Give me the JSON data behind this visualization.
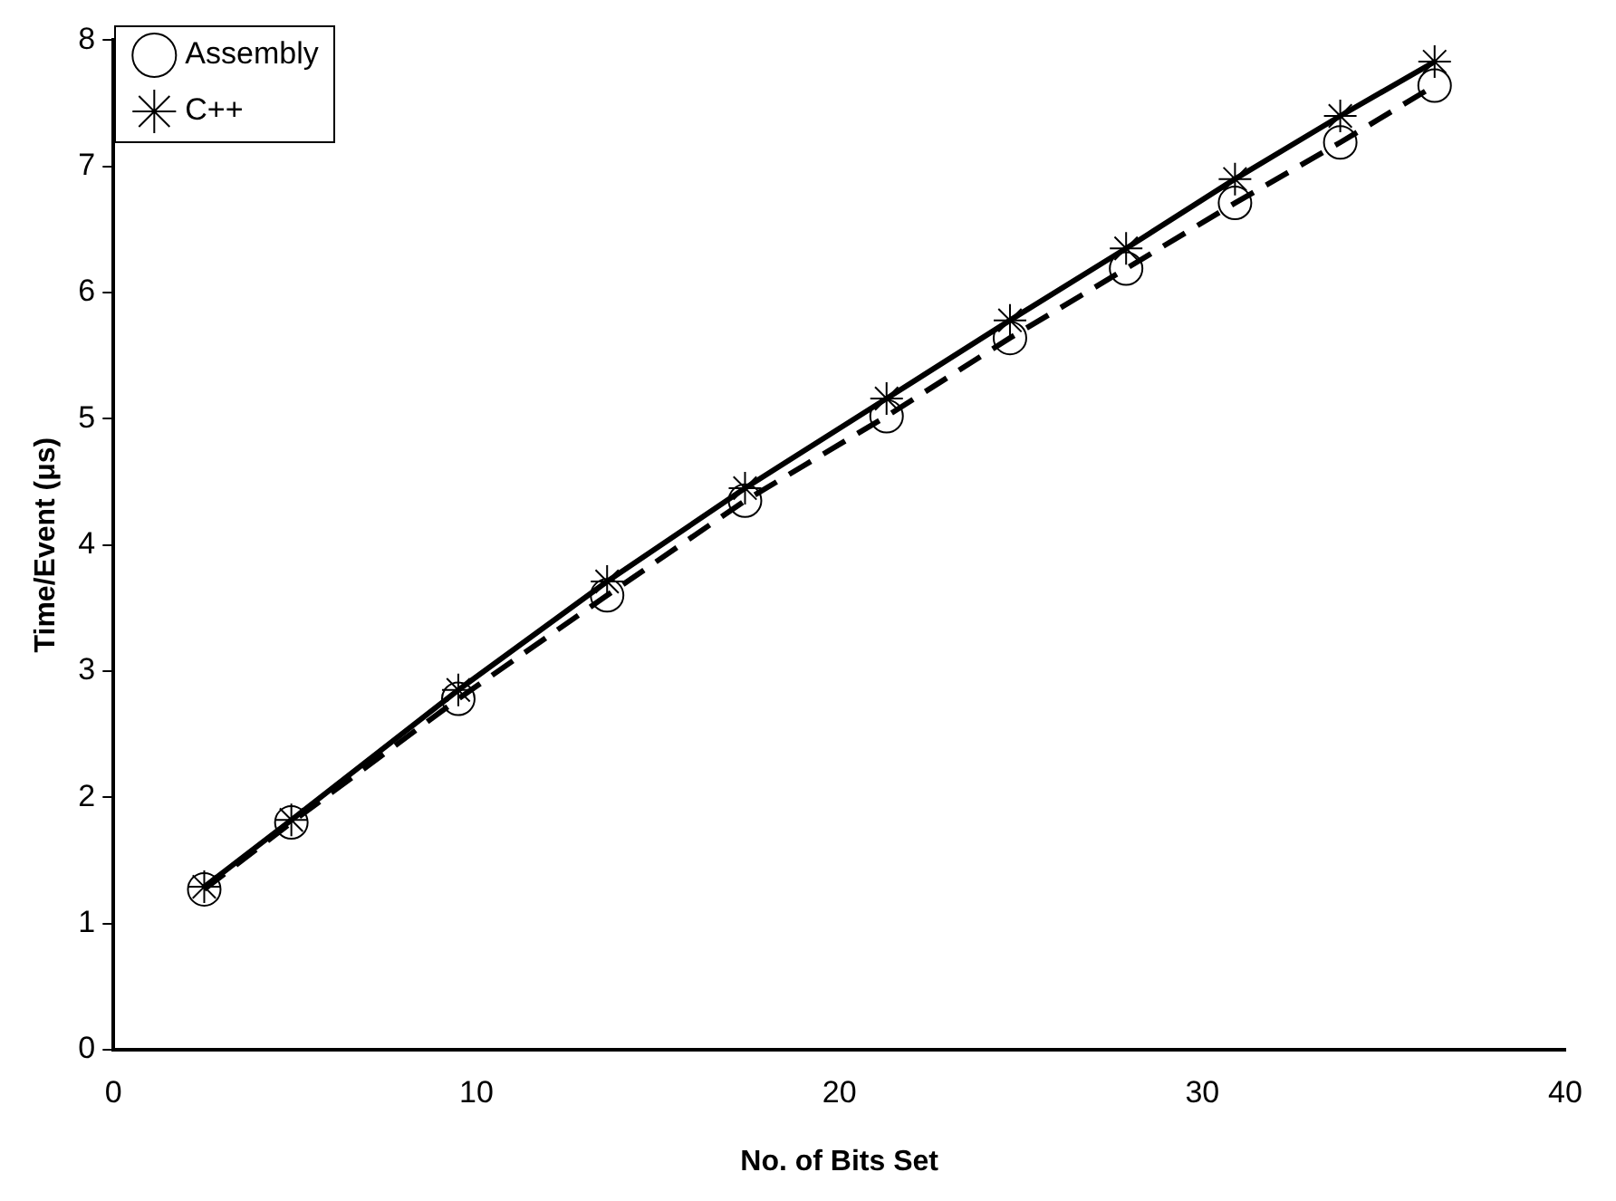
{
  "chart_data": {
    "type": "line",
    "xlabel": "No. of Bits Set",
    "ylabel": "Time/Event (μs)",
    "xlim": [
      0,
      40
    ],
    "xticks": [
      0,
      10,
      20,
      30,
      40
    ],
    "ylim": [
      0,
      8
    ],
    "yticks": [
      0,
      1,
      2,
      3,
      4,
      5,
      6,
      7,
      8
    ],
    "grid": false,
    "legend": "top left",
    "series": [
      {
        "name": "Assembly",
        "color": "#000000",
        "marker": "circle",
        "line_style": "dashed",
        "x": [
          2.5,
          4.9,
          9.5,
          13.6,
          17.4,
          21.3,
          24.7,
          27.9,
          30.9,
          33.8,
          36.4
        ],
        "values": [
          1.27,
          1.8,
          2.78,
          3.6,
          4.35,
          5.02,
          5.64,
          6.19,
          6.71,
          7.19,
          7.64
        ]
      },
      {
        "name": "C++",
        "color": "#000000",
        "marker": "cross",
        "line_style": "solid",
        "x": [
          2.5,
          4.9,
          9.5,
          13.6,
          17.4,
          21.3,
          24.7,
          27.9,
          30.9,
          33.8,
          36.4
        ],
        "values": [
          1.29,
          1.82,
          2.85,
          3.71,
          4.45,
          5.16,
          5.78,
          6.35,
          6.9,
          7.4,
          7.83
        ]
      }
    ]
  }
}
